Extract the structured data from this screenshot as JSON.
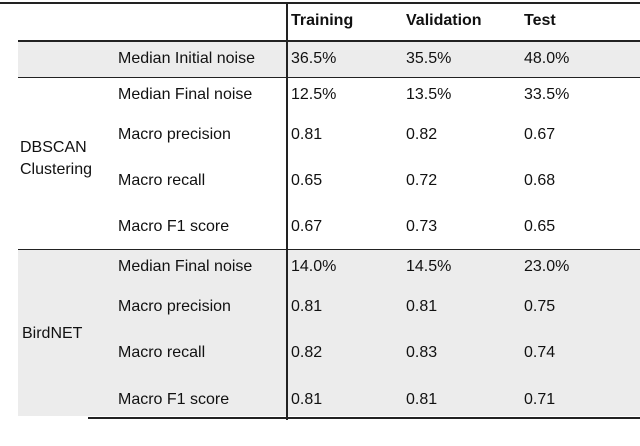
{
  "columns": [
    "Training",
    "Validation",
    "Test"
  ],
  "initial_row": {
    "label": "Median Initial noise",
    "values": [
      "36.5%",
      "35.5%",
      "48.0%"
    ]
  },
  "groups": [
    {
      "name_line1": "DBSCAN",
      "name_line2": "Clustering",
      "rows": [
        {
          "label": "Median Final noise",
          "values": [
            "12.5%",
            "13.5%",
            "33.5%"
          ]
        },
        {
          "label": "Macro precision",
          "values": [
            "0.81",
            "0.82",
            "0.67"
          ]
        },
        {
          "label": "Macro recall",
          "values": [
            "0.65",
            "0.72",
            "0.68"
          ]
        },
        {
          "label": "Macro F1 score",
          "values": [
            "0.67",
            "0.73",
            "0.65"
          ]
        }
      ]
    },
    {
      "name_line1": "BirdNET",
      "rows": [
        {
          "label": "Median Final noise",
          "values": [
            "14.0%",
            "14.5%",
            "23.0%"
          ]
        },
        {
          "label": "Macro precision",
          "values": [
            "0.81",
            "0.81",
            "0.75"
          ]
        },
        {
          "label": "Macro recall",
          "values": [
            "0.82",
            "0.83",
            "0.74"
          ]
        },
        {
          "label": "Macro F1 score",
          "values": [
            "0.81",
            "0.81",
            "0.71"
          ]
        }
      ]
    }
  ],
  "colors": {
    "band": "#ececec",
    "rule": "#222222"
  }
}
